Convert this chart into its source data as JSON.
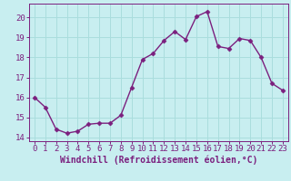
{
  "x": [
    0,
    1,
    2,
    3,
    4,
    5,
    6,
    7,
    8,
    9,
    10,
    11,
    12,
    13,
    14,
    15,
    16,
    17,
    18,
    19,
    20,
    21,
    22,
    23
  ],
  "y": [
    16.0,
    15.5,
    14.4,
    14.2,
    14.3,
    14.65,
    14.7,
    14.7,
    15.1,
    16.5,
    17.9,
    18.2,
    18.85,
    19.3,
    18.9,
    20.05,
    20.3,
    18.55,
    18.45,
    18.95,
    18.85,
    18.0,
    16.7,
    16.35
  ],
  "line_color": "#7b1f7e",
  "marker": "D",
  "marker_size": 2.5,
  "bg_color": "#c8eef0",
  "grid_color": "#aadddd",
  "xlabel": "Windchill (Refroidissement éolien,°C)",
  "ylabel": "",
  "ylim": [
    13.8,
    20.7
  ],
  "xlim": [
    -0.5,
    23.5
  ],
  "yticks": [
    14,
    15,
    16,
    17,
    18,
    19,
    20
  ],
  "xticks": [
    0,
    1,
    2,
    3,
    4,
    5,
    6,
    7,
    8,
    9,
    10,
    11,
    12,
    13,
    14,
    15,
    16,
    17,
    18,
    19,
    20,
    21,
    22,
    23
  ],
  "tick_color": "#7b1f7e",
  "label_fontsize": 7,
  "tick_fontsize": 6.5,
  "linewidth": 1.0
}
